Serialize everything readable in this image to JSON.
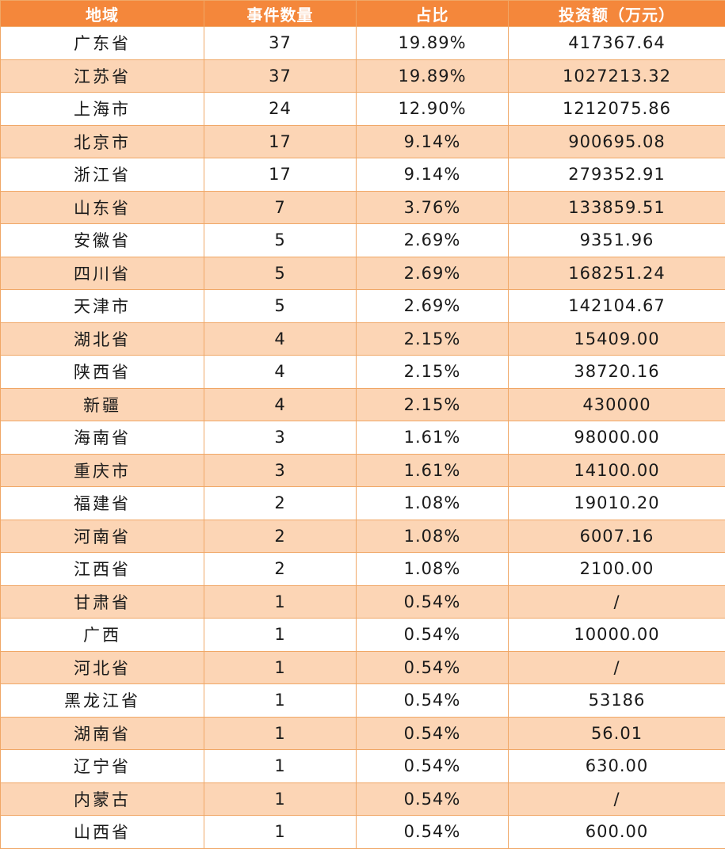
{
  "table": {
    "headers": [
      "地域",
      "事件数量",
      "占比",
      "投资额（万元）"
    ],
    "rows": [
      [
        "广东省",
        "37",
        "19.89%",
        "417367.64"
      ],
      [
        "江苏省",
        "37",
        "19.89%",
        "1027213.32"
      ],
      [
        "上海市",
        "24",
        "12.90%",
        "1212075.86"
      ],
      [
        "北京市",
        "17",
        "9.14%",
        "900695.08"
      ],
      [
        "浙江省",
        "17",
        "9.14%",
        "279352.91"
      ],
      [
        "山东省",
        "7",
        "3.76%",
        "133859.51"
      ],
      [
        "安徽省",
        "5",
        "2.69%",
        "9351.96"
      ],
      [
        "四川省",
        "5",
        "2.69%",
        "168251.24"
      ],
      [
        "天津市",
        "5",
        "2.69%",
        "142104.67"
      ],
      [
        "湖北省",
        "4",
        "2.15%",
        "15409.00"
      ],
      [
        "陕西省",
        "4",
        "2.15%",
        "38720.16"
      ],
      [
        "新疆",
        "4",
        "2.15%",
        "430000"
      ],
      [
        "海南省",
        "3",
        "1.61%",
        "98000.00"
      ],
      [
        "重庆市",
        "3",
        "1.61%",
        "14100.00"
      ],
      [
        "福建省",
        "2",
        "1.08%",
        "19010.20"
      ],
      [
        "河南省",
        "2",
        "1.08%",
        "6007.16"
      ],
      [
        "江西省",
        "2",
        "1.08%",
        "2100.00"
      ],
      [
        "甘肃省",
        "1",
        "0.54%",
        "/"
      ],
      [
        "广西",
        "1",
        "0.54%",
        "10000.00"
      ],
      [
        "河北省",
        "1",
        "0.54%",
        "/"
      ],
      [
        "黑龙江省",
        "1",
        "0.54%",
        "53186"
      ],
      [
        "湖南省",
        "1",
        "0.54%",
        "56.01"
      ],
      [
        "辽宁省",
        "1",
        "0.54%",
        "630.00"
      ],
      [
        "内蒙古",
        "1",
        "0.54%",
        "/"
      ],
      [
        "山西省",
        "1",
        "0.54%",
        "600.00"
      ]
    ]
  },
  "colors": {
    "header_bg": "#f4873b",
    "header_text": "#ffffff",
    "row_alt_bg": "#fcd5b5",
    "row_bg": "#ffffff",
    "border": "#f0a766"
  }
}
